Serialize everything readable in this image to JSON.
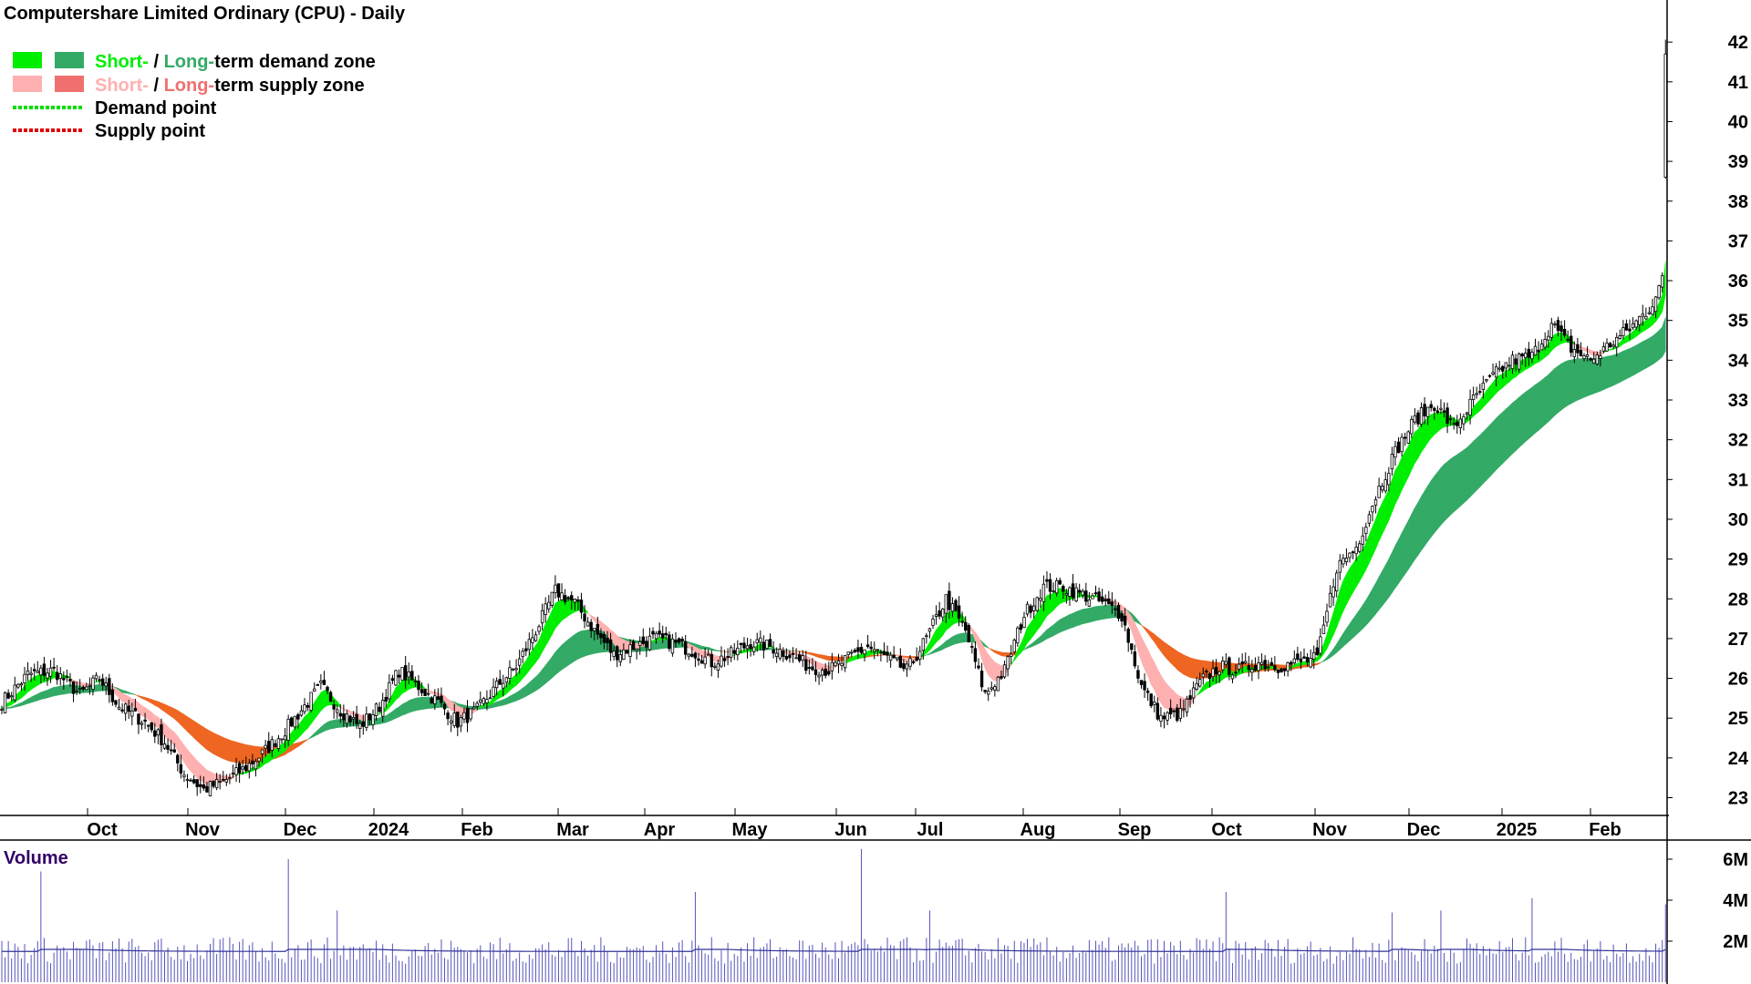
{
  "chart_data": [
    {
      "type": "candlestick",
      "title": "Computershare Limited Ordinary (CPU) - Daily",
      "legend": [
        {
          "parts": [
            "Short-",
            " / ",
            "Long-",
            "term demand zone"
          ],
          "swatches": [
            "#00ee00",
            "#33aa66"
          ]
        },
        {
          "parts": [
            "Short-",
            " / ",
            "Long-",
            "term supply zone"
          ],
          "swatches": [
            "#ffb0b0",
            "#f07070"
          ]
        },
        {
          "label": "Demand point",
          "line_color": "#00dd00"
        },
        {
          "label": "Supply point",
          "line_color": "#dd0000"
        }
      ],
      "x_months": [
        "Oct",
        "Nov",
        "Dec",
        "2024",
        "Feb",
        "Mar",
        "Apr",
        "May",
        "Jun",
        "Jul",
        "Aug",
        "Sep",
        "Oct",
        "Nov",
        "Dec",
        "2025",
        "Feb"
      ],
      "y_ticks": [
        23,
        24,
        25,
        26,
        27,
        28,
        29,
        30,
        31,
        32,
        33,
        34,
        35,
        36,
        37,
        38,
        39,
        40,
        41,
        42
      ],
      "ylim": [
        22.4,
        42.5
      ],
      "approx_close_path": [
        [
          0,
          25.4
        ],
        [
          8,
          26.1
        ],
        [
          16,
          26.2
        ],
        [
          24,
          25.6
        ],
        [
          30,
          26.0
        ],
        [
          36,
          25.3
        ],
        [
          44,
          24.9
        ],
        [
          50,
          24.4
        ],
        [
          56,
          23.6
        ],
        [
          62,
          23.2
        ],
        [
          68,
          23.4
        ],
        [
          74,
          23.7
        ],
        [
          80,
          24.1
        ],
        [
          86,
          24.6
        ],
        [
          92,
          25.2
        ],
        [
          98,
          25.8
        ],
        [
          104,
          25.2
        ],
        [
          110,
          24.8
        ],
        [
          116,
          25.3
        ],
        [
          122,
          26.2
        ],
        [
          128,
          25.8
        ],
        [
          134,
          25.4
        ],
        [
          140,
          24.9
        ],
        [
          146,
          25.2
        ],
        [
          152,
          25.8
        ],
        [
          158,
          26.3
        ],
        [
          164,
          27.2
        ],
        [
          170,
          28.2
        ],
        [
          176,
          27.9
        ],
        [
          182,
          27.2
        ],
        [
          188,
          26.6
        ],
        [
          194,
          26.8
        ],
        [
          200,
          27.0
        ],
        [
          206,
          26.9
        ],
        [
          212,
          26.7
        ],
        [
          218,
          26.4
        ],
        [
          224,
          26.6
        ],
        [
          230,
          26.9
        ],
        [
          236,
          26.8
        ],
        [
          242,
          26.6
        ],
        [
          248,
          26.3
        ],
        [
          254,
          26.2
        ],
        [
          260,
          26.5
        ],
        [
          266,
          26.8
        ],
        [
          272,
          26.5
        ],
        [
          278,
          26.2
        ],
        [
          284,
          27.0
        ],
        [
          290,
          28.0
        ],
        [
          296,
          27.2
        ],
        [
          302,
          25.6
        ],
        [
          308,
          26.2
        ],
        [
          314,
          27.6
        ],
        [
          320,
          28.3
        ],
        [
          326,
          28.3
        ],
        [
          332,
          28.1
        ],
        [
          338,
          27.9
        ],
        [
          344,
          27.6
        ],
        [
          350,
          25.8
        ],
        [
          356,
          25.0
        ],
        [
          362,
          25.1
        ],
        [
          368,
          25.9
        ],
        [
          374,
          26.3
        ],
        [
          380,
          26.2
        ],
        [
          386,
          26.4
        ],
        [
          392,
          26.3
        ],
        [
          398,
          26.4
        ],
        [
          404,
          26.5
        ],
        [
          410,
          28.8
        ],
        [
          416,
          29.3
        ],
        [
          422,
          30.6
        ],
        [
          428,
          31.7
        ],
        [
          434,
          32.5
        ],
        [
          440,
          32.9
        ],
        [
          446,
          32.3
        ],
        [
          452,
          33.0
        ],
        [
          458,
          33.6
        ],
        [
          464,
          34.0
        ],
        [
          470,
          34.1
        ],
        [
          476,
          34.9
        ],
        [
          482,
          34.3
        ],
        [
          488,
          34.0
        ],
        [
          494,
          34.4
        ],
        [
          500,
          34.8
        ],
        [
          506,
          35.3
        ],
        [
          510,
          36.0
        ],
        [
          511,
          41.8
        ]
      ],
      "note": "price series approximated from the chart"
    },
    {
      "type": "bar",
      "title": "Volume",
      "y_ticks": [
        "2M",
        "4M",
        "6M"
      ],
      "approx_average": "about 1.5M per day",
      "approx_spikes": [
        {
          "x": 12,
          "value": 5.4
        },
        {
          "x": 88,
          "value": 6.0
        },
        {
          "x": 103,
          "value": 3.5
        },
        {
          "x": 213,
          "value": 4.4
        },
        {
          "x": 264,
          "value": 6.5
        },
        {
          "x": 285,
          "value": 3.5
        },
        {
          "x": 376,
          "value": 4.4
        },
        {
          "x": 427,
          "value": 3.4
        },
        {
          "x": 442,
          "value": 3.5
        },
        {
          "x": 470,
          "value": 4.1
        },
        {
          "x": 511,
          "value": 3.8
        }
      ]
    }
  ]
}
